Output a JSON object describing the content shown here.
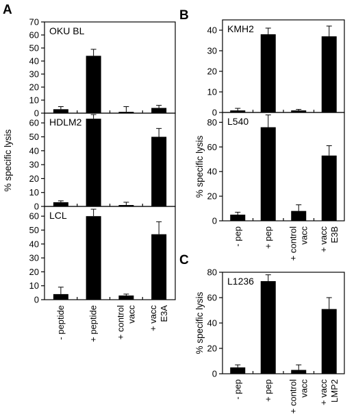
{
  "figure": {
    "panel_letters": [
      "A",
      "B",
      "C"
    ]
  },
  "chart_data": [
    {
      "type": "bar",
      "panel": "A",
      "title": "OKU BL",
      "categories": [
        "- peptide",
        "+ peptide",
        "+ control vacc",
        "+ vacc E3A"
      ],
      "values": [
        3,
        44,
        1,
        4
      ],
      "errors": [
        2,
        5,
        4,
        2
      ],
      "ylabel": "",
      "ylim": [
        0,
        70
      ],
      "yticks": [
        0,
        10,
        20,
        30,
        40,
        50,
        60,
        70
      ],
      "grid": false
    },
    {
      "type": "bar",
      "panel": "A",
      "title": "HDLM2",
      "categories": [
        "- peptide",
        "+ peptide",
        "+ control vacc",
        "+ vacc E3A"
      ],
      "values": [
        3,
        63,
        1,
        50
      ],
      "errors": [
        1,
        3,
        2,
        6
      ],
      "ylabel": "% specific lysis",
      "ylim": [
        0,
        67
      ],
      "yticks": [
        0,
        10,
        20,
        30,
        40,
        50,
        60
      ],
      "grid": false
    },
    {
      "type": "bar",
      "panel": "A",
      "title": "LCL",
      "categories": [
        "- peptide",
        "+ peptide",
        "+ control vacc",
        "+ vacc E3A"
      ],
      "values": [
        4,
        60,
        3,
        47
      ],
      "errors": [
        5,
        5,
        1,
        9
      ],
      "ylabel": "",
      "ylim": [
        0,
        67
      ],
      "yticks": [
        0,
        10,
        20,
        30,
        40,
        50,
        60
      ],
      "grid": false
    },
    {
      "type": "bar",
      "panel": "B",
      "title": "KMH2",
      "categories": [
        "- pep",
        "+ pep",
        "+ control vacc",
        "+ vacc E3B"
      ],
      "values": [
        1,
        38,
        1,
        37
      ],
      "errors": [
        1,
        3,
        0.5,
        5
      ],
      "ylabel": "",
      "ylim": [
        0,
        45
      ],
      "yticks": [
        0,
        10,
        20,
        30,
        40
      ],
      "grid": false
    },
    {
      "type": "bar",
      "panel": "B",
      "title": "L540",
      "categories": [
        "- pep",
        "+ pep",
        "+ control vacc",
        "+ vacc E3B"
      ],
      "values": [
        5,
        76,
        8,
        53
      ],
      "errors": [
        2,
        10,
        5,
        8
      ],
      "ylabel": "% specific lysis",
      "ylim": [
        0,
        88
      ],
      "yticks": [
        0,
        20,
        40,
        60,
        80
      ],
      "grid": false
    },
    {
      "type": "bar",
      "panel": "C",
      "title": "L1236",
      "categories": [
        "- pep",
        "+ pep",
        "+ control vacc",
        "+ vacc LMP2"
      ],
      "values": [
        5,
        73,
        3,
        51
      ],
      "errors": [
        2,
        5,
        4,
        9
      ],
      "ylabel": "% specific lysis",
      "ylim": [
        0,
        80
      ],
      "yticks": [
        0,
        20,
        40,
        60,
        80
      ],
      "grid": false
    }
  ]
}
